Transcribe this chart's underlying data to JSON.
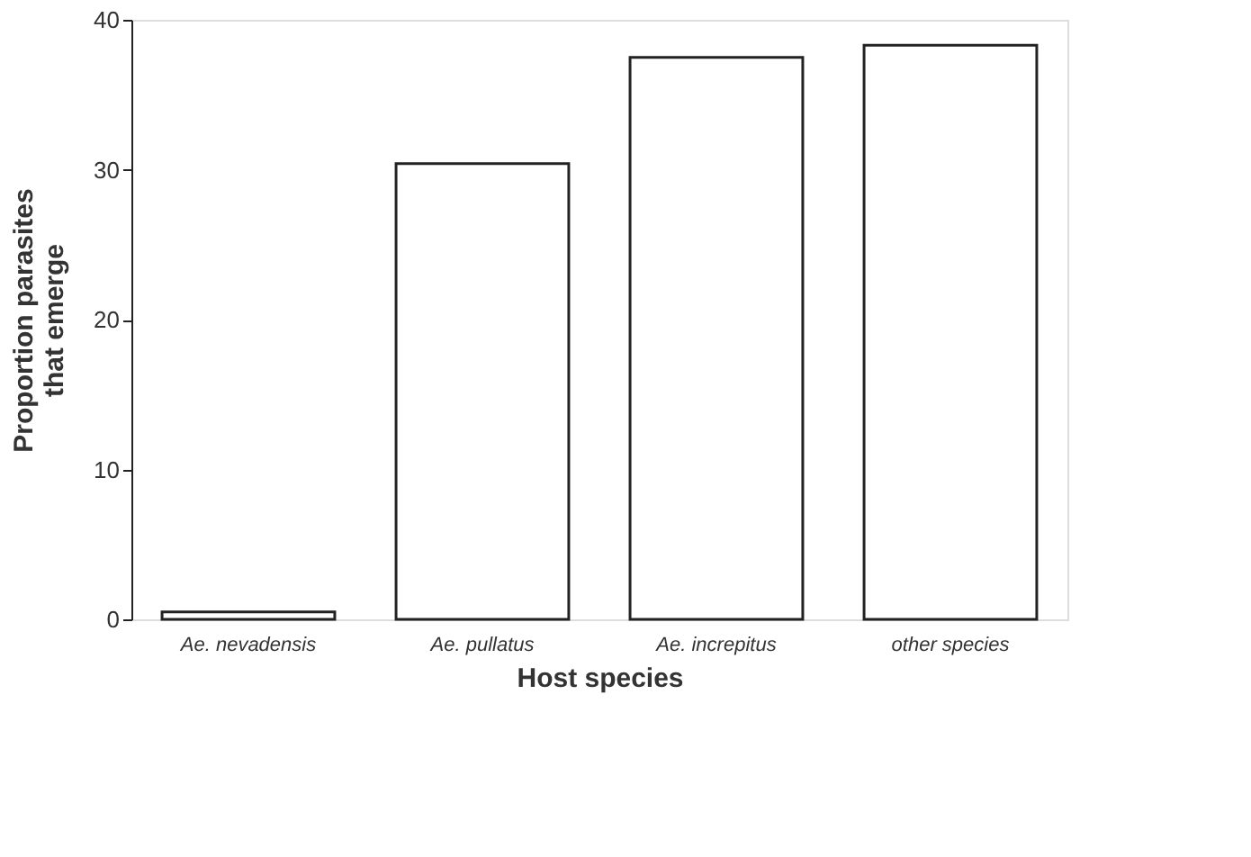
{
  "chart_data": {
    "type": "bar",
    "categories": [
      "Ae. nevadensis",
      "Ae. pullatus",
      "Ae. increpitus",
      "other species"
    ],
    "values": [
      0.5,
      30.4,
      37.5,
      38.3
    ],
    "color": "#ffffff",
    "xlabel": "Host species",
    "ylabel": "Proportion  parasites\nthat emerge",
    "ylim": [
      0,
      40
    ],
    "yticks": [
      0,
      10,
      20,
      30,
      40
    ],
    "grid": false
  }
}
